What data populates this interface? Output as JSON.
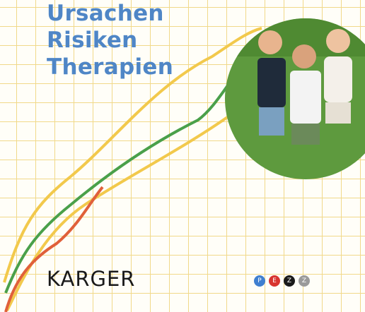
{
  "title": {
    "lines": [
      "Ursachen",
      "Risiken",
      "Therapien"
    ]
  },
  "publisher": "KARGER",
  "logo": {
    "letters": [
      "P",
      "E",
      "Z",
      "Z"
    ]
  }
}
